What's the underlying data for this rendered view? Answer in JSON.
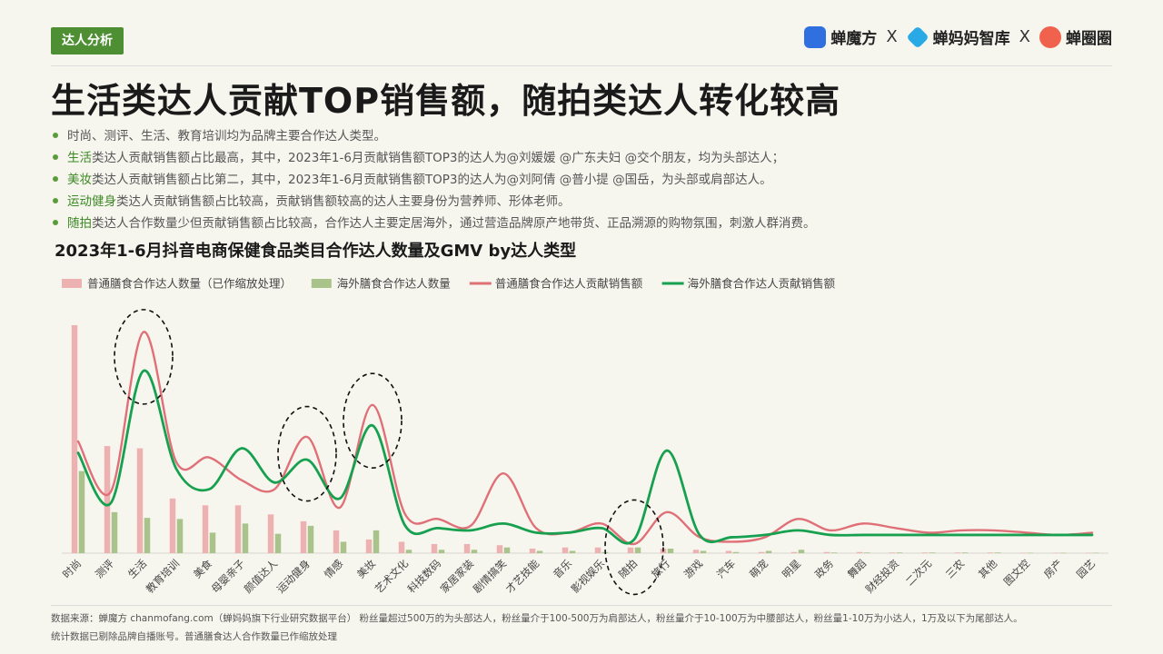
{
  "section_tag": "达人分析",
  "logos": {
    "brand1": "蝉魔方",
    "sep1": "X",
    "brand2": "蝉妈妈智库",
    "sep2": "X",
    "brand3": "蝉圈圈"
  },
  "headline": "生活类达人贡献TOP销售额，随拍类达人转化较高",
  "bullets": [
    {
      "hl": "",
      "text": "时尚、测评、生活、教育培训均为品牌主要合作达人类型。"
    },
    {
      "hl": "生活",
      "text": "类达人贡献销售额占比最高，其中，2023年1-6月贡献销售额TOP3的达人为@刘媛媛 @广东夫妇 @交个朋友，均为头部达人；"
    },
    {
      "hl": "美妆",
      "text": "类达人贡献销售额占比第二，其中，2023年1-6月贡献销售额TOP3的达人为@刘阿倩 @普小提 @国岳，为头部或肩部达人。"
    },
    {
      "hl": "运动健身",
      "text": "类达人贡献销售额占比较高，贡献销售额较高的达人主要身份为营养师、形体老师。"
    },
    {
      "hl": "随拍",
      "text": "类达人合作数量少但贡献销售额占比较高，合作达人主要定居海外，通过营造品牌原产地带货、正品溯源的购物氛围，刺激人群消费。"
    }
  ],
  "chart_data": {
    "type": "bar",
    "title": "2023年1-6月抖音电商保健食品类目合作达人数量及GMV by达人类型",
    "categories": [
      "时尚",
      "测评",
      "生活",
      "教育培训",
      "美食",
      "母婴亲子",
      "颜值达人",
      "运动健身",
      "情感",
      "美妆",
      "艺术文化",
      "科技数码",
      "家居家装",
      "剧情搞笑",
      "才艺技能",
      "音乐",
      "影视娱乐",
      "随拍",
      "旅行",
      "游戏",
      "汽车",
      "萌宠",
      "明星",
      "政务",
      "舞蹈",
      "财经投资",
      "二次元",
      "三农",
      "其他",
      "图文控",
      "房产",
      "园艺"
    ],
    "series": [
      {
        "name": "普通膳食合作达人数量（已作缩放处理）",
        "kind": "bar",
        "color": "#eeb1b1",
        "values": [
          100,
          47,
          46,
          24,
          21,
          21,
          17,
          14,
          10,
          6,
          5,
          4,
          4,
          3.5,
          2,
          2.5,
          2.5,
          2.5,
          2,
          1.5,
          1,
          0.5,
          0.5,
          0.5,
          0.5,
          0.3,
          0.3,
          0.3,
          0.3,
          0.2,
          0.2,
          0.2
        ]
      },
      {
        "name": "海外膳食合作达人数量",
        "kind": "bar",
        "color": "#a9c48b",
        "values": [
          36,
          18,
          15.5,
          15,
          9,
          13,
          8.5,
          12,
          5,
          10,
          1.5,
          1.5,
          1.5,
          2.5,
          1,
          1,
          0.5,
          2.5,
          2,
          1,
          0.5,
          1,
          1.5,
          0.3,
          0.3,
          0.3,
          0.3,
          0.3,
          0.3,
          0.2,
          0.2,
          0.2
        ]
      },
      {
        "name": "普通膳食合作达人贡献销售额",
        "kind": "line",
        "color": "#e07078",
        "values": [
          49,
          27,
          97,
          40,
          42,
          32,
          28,
          51,
          20,
          65,
          17,
          15,
          12,
          35,
          11,
          9,
          13,
          4,
          18,
          7,
          5,
          7,
          15,
          10,
          13,
          11,
          9,
          10,
          10,
          9,
          8,
          9
        ]
      },
      {
        "name": "海外膳食合作达人贡献销售额",
        "kind": "line",
        "color": "#17a04f",
        "values": [
          44,
          22,
          80,
          37,
          28,
          46,
          31,
          41,
          24,
          56,
          12,
          11,
          10,
          13,
          9,
          9,
          11,
          6,
          45,
          8,
          7,
          8,
          10,
          8,
          8,
          8,
          8,
          8,
          8,
          8,
          8,
          8
        ]
      }
    ],
    "ylim": [
      0,
      100
    ],
    "grid": false,
    "legend": "top-left",
    "highlight_categories": [
      "生活",
      "运动健身",
      "美妆",
      "随拍"
    ]
  },
  "footer": {
    "source": "数据来源：蝉魔方 chanmofang.com（蝉妈妈旗下行业研究数据平台） 粉丝量超过500万的为头部达人，粉丝量介于100-500万为肩部达人，粉丝量介于10-100万为中腰部达人，粉丝量1-10万为小达人，1万及以下为尾部达人。",
    "note": "统计数据已剔除品牌自播账号。普通膳食达人合作数量已作缩放处理"
  }
}
